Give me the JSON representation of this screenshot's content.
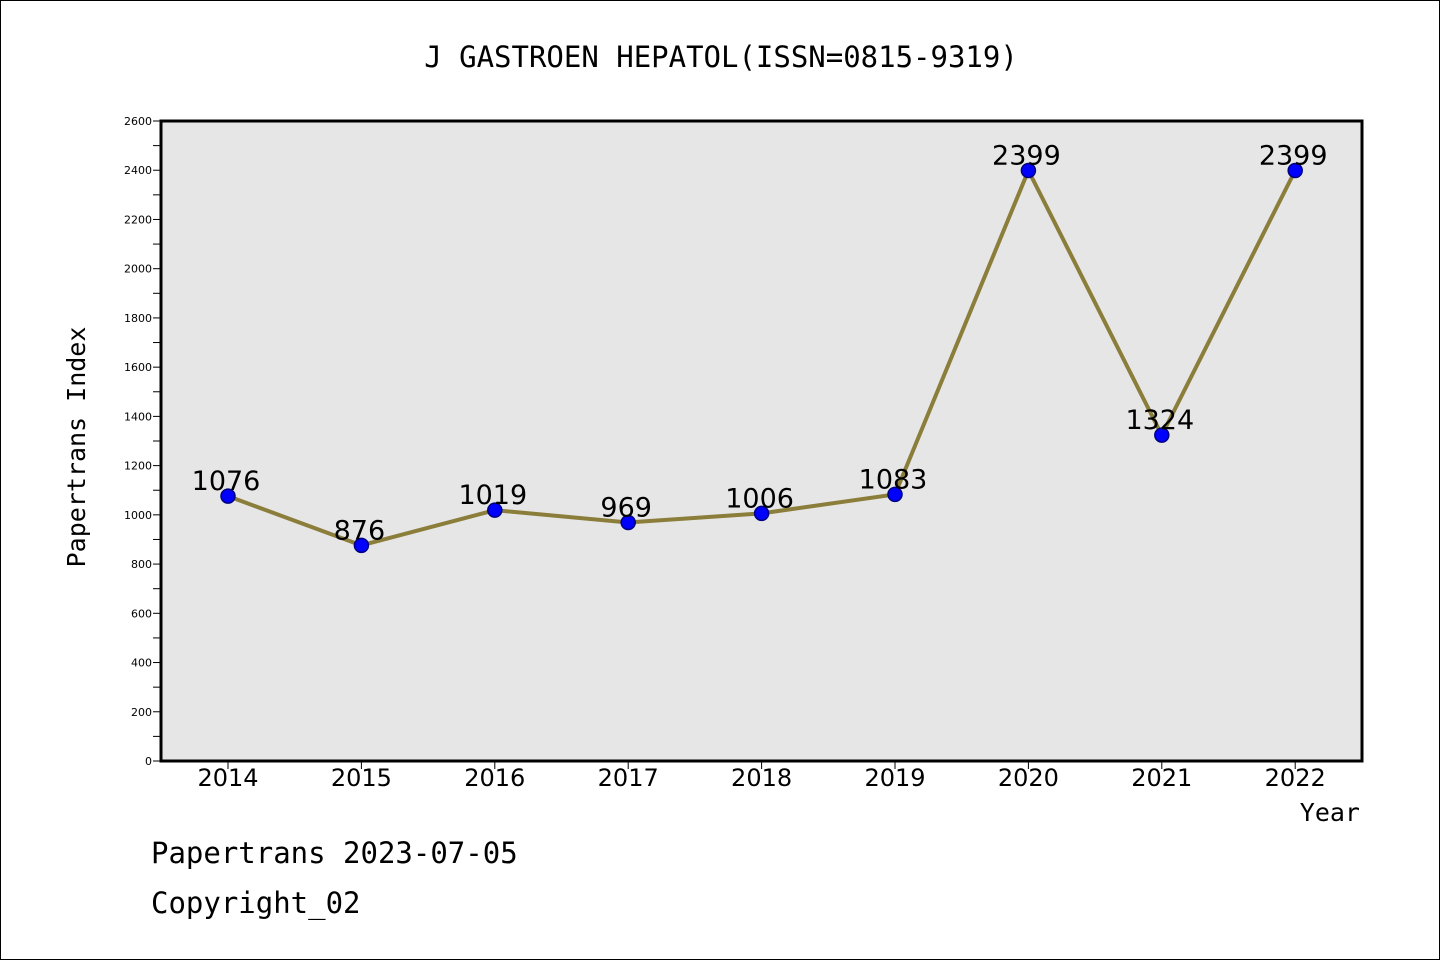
{
  "chart_data": {
    "type": "line",
    "title": "J GASTROEN HEPATOL(ISSN=0815-9319)",
    "xlabel": "Year",
    "ylabel": "Papertrans Index",
    "categories": [
      "2014",
      "2015",
      "2016",
      "2017",
      "2018",
      "2019",
      "2020",
      "2021",
      "2022"
    ],
    "values": [
      1076,
      876,
      1019,
      969,
      1006,
      1083,
      2399,
      1324,
      2399
    ],
    "data_labels": [
      "1076",
      "876",
      "1019",
      "969",
      "1006",
      "1083",
      "2399",
      "1324",
      "2399"
    ],
    "ylim": [
      0,
      2600
    ],
    "yticks": [
      0,
      200,
      400,
      600,
      800,
      1000,
      1200,
      1400,
      1600,
      1800,
      2000,
      2200,
      2400,
      2600
    ],
    "grid": false,
    "colors": {
      "line": "#8b7d3a",
      "marker_fill": "#0000ff",
      "marker_edge": "#000080",
      "plot_bg": "#e6e6e6"
    }
  },
  "footer": {
    "source": "Papertrans 2023-07-05",
    "copyright": "Copyright_02"
  }
}
